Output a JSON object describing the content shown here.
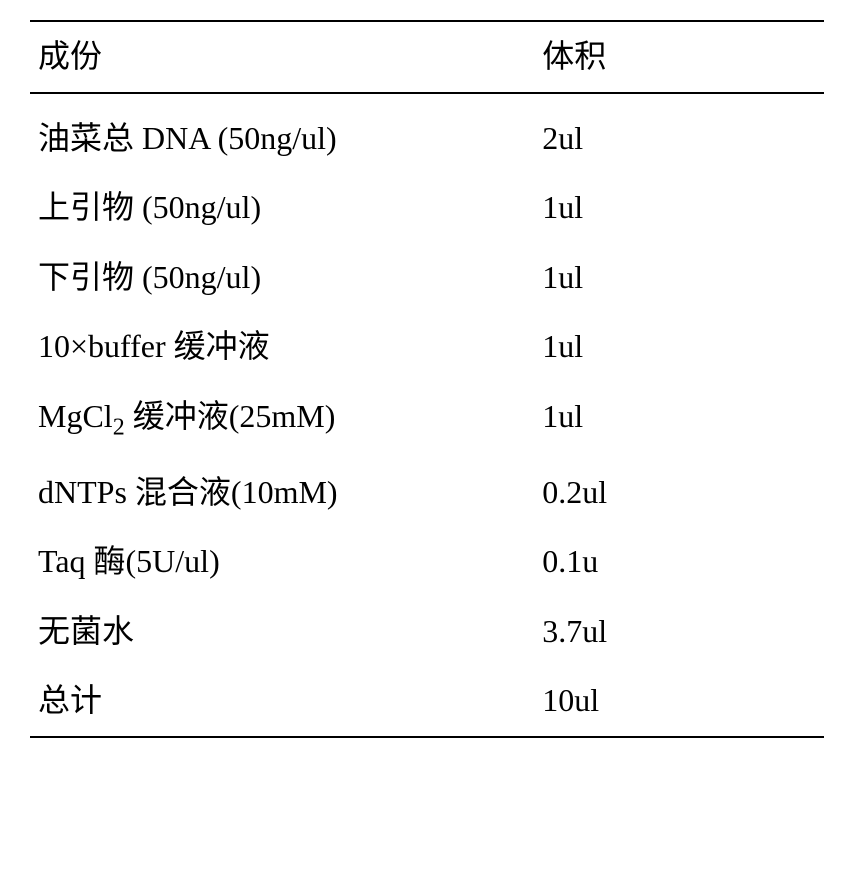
{
  "table": {
    "header": {
      "component_label": "成份",
      "volume_label": "体积"
    },
    "rows": [
      {
        "component": "油菜总 DNA  (50ng/ul)",
        "volume": "2ul"
      },
      {
        "component": "上引物 (50ng/ul)",
        "volume": "1ul"
      },
      {
        "component": "下引物 (50ng/ul)",
        "volume": "1ul"
      },
      {
        "component": "10×buffer 缓冲液",
        "volume": "1ul"
      },
      {
        "component_html": "MgCl<sub class=\"subscript\">2</sub>  缓冲液(25mM)",
        "component": "MgCl2  缓冲液(25mM)",
        "volume": "1ul"
      },
      {
        "component": "dNTPs  混合液(10mM)",
        "volume": "0.2ul"
      },
      {
        "component": "Taq  酶(5U/ul)",
        "volume": "0.1u"
      },
      {
        "component": "无菌水",
        "volume": "3.7ul"
      },
      {
        "component": "总计",
        "volume": "10ul"
      }
    ],
    "styling": {
      "border_color": "#000000",
      "border_width_top_bottom": 2,
      "text_color": "#000000",
      "font_size": 32,
      "background_color": "#ffffff",
      "col_component_width_pct": 62,
      "col_volume_width_pct": 38,
      "row_padding_vertical": 14
    }
  }
}
